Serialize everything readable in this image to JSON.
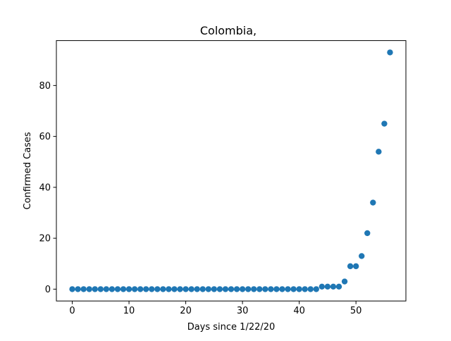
{
  "chart_data": {
    "type": "scatter",
    "title": "Colombia,",
    "xlabel": "Days since 1/22/20",
    "ylabel": "Confirmed Cases",
    "xlim": [
      -2.8,
      58.8
    ],
    "ylim": [
      -4.65,
      97.65
    ],
    "xticks": [
      0,
      10,
      20,
      30,
      40,
      50
    ],
    "yticks": [
      0,
      20,
      40,
      60,
      80
    ],
    "grid": false,
    "marker_color": "#1f77b4",
    "series": [
      {
        "x": [
          0,
          1,
          2,
          3,
          4,
          5,
          6,
          7,
          8,
          9,
          10,
          11,
          12,
          13,
          14,
          15,
          16,
          17,
          18,
          19,
          20,
          21,
          22,
          23,
          24,
          25,
          26,
          27,
          28,
          29,
          30,
          31,
          32,
          33,
          34,
          35,
          36,
          37,
          38,
          39,
          40,
          41,
          42,
          43,
          44,
          45,
          46,
          47,
          48,
          49,
          50,
          51,
          52,
          53,
          54,
          55,
          56
        ],
        "y": [
          0,
          0,
          0,
          0,
          0,
          0,
          0,
          0,
          0,
          0,
          0,
          0,
          0,
          0,
          0,
          0,
          0,
          0,
          0,
          0,
          0,
          0,
          0,
          0,
          0,
          0,
          0,
          0,
          0,
          0,
          0,
          0,
          0,
          0,
          0,
          0,
          0,
          0,
          0,
          0,
          0,
          0,
          0,
          0,
          1,
          1,
          1,
          1,
          3,
          9,
          9,
          13,
          22,
          34,
          54,
          65,
          93
        ]
      }
    ]
  }
}
